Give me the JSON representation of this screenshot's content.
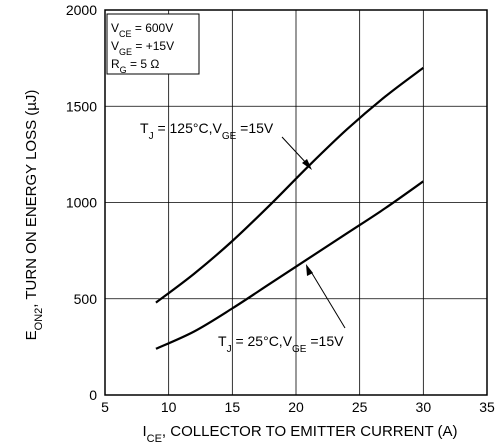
{
  "chart_data": {
    "type": "line",
    "xlabel": {
      "prefix": "I",
      "sub": "CE",
      "rest": ", COLLECTOR TO EMITTER CURRENT (A)"
    },
    "ylabel": {
      "prefix": "E",
      "sub": "ON2",
      "rest": ", TURN ON ENERGY LOSS (µJ)"
    },
    "xlim": [
      5,
      35
    ],
    "ylim": [
      0,
      2000
    ],
    "xticks": [
      5,
      10,
      15,
      20,
      25,
      30,
      35
    ],
    "yticks": [
      0,
      500,
      1000,
      1500,
      2000
    ],
    "grid": true,
    "conditions": [
      {
        "prefix": "V",
        "sub": "CE",
        "rest": " =  600V"
      },
      {
        "prefix": "V",
        "sub": "GE",
        "rest": " =  +15V"
      },
      {
        "prefix": "R",
        "sub": "G",
        "rest": " = 5 Ω"
      }
    ],
    "series": [
      {
        "name": "TJ = 125°C, VGE = 15V",
        "label": {
          "t": "T",
          "tsub": "J",
          "mid": " = 125°C,V",
          "gsub": "GE",
          "end": " =15V"
        },
        "x": [
          9,
          12,
          15,
          18,
          21,
          24,
          27,
          30
        ],
        "y": [
          480,
          630,
          800,
          990,
          1190,
          1380,
          1550,
          1700
        ]
      },
      {
        "name": "TJ = 25°C, VGE = 15V",
        "label": {
          "t": "T",
          "tsub": "J",
          "mid": " = 25°C,V",
          "gsub": "GE",
          "end": " =15V"
        },
        "x": [
          9,
          12,
          15,
          18,
          21,
          24,
          27,
          30
        ],
        "y": [
          240,
          330,
          450,
          580,
          710,
          840,
          970,
          1110
        ]
      }
    ]
  }
}
